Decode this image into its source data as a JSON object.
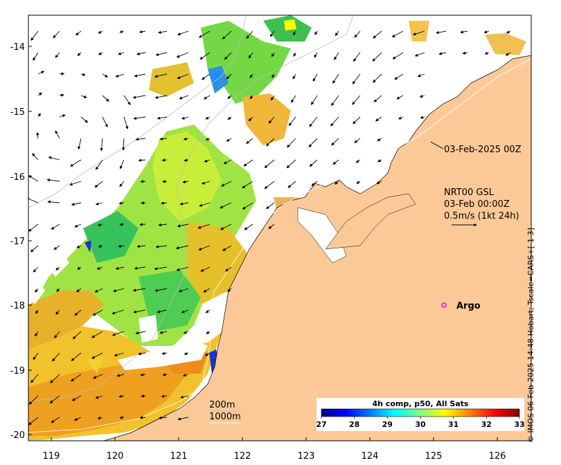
{
  "map": {
    "lon_ticks": [
      "119",
      "120",
      "121",
      "122",
      "123",
      "124",
      "125",
      "126"
    ],
    "lat_ticks": [
      "-14",
      "-15",
      "-16",
      "-17",
      "-18",
      "-19",
      "-20"
    ],
    "timestamp_label": "03-Feb-2025 00Z",
    "product_label": "NRT00 GSL",
    "product_time": "03-Feb 00:00Z",
    "current_scale": "0.5m/s (1kt 24h)",
    "argo_label": "Argo",
    "isobath_200": "200m",
    "isobath_1000": "1000m",
    "credit": "© IMOS 06-Feb-2025 14:48 Hobart; Tscale=CARS+[-1 3]"
  },
  "colorbar": {
    "title": "4h comp, p50, All Sats",
    "ticks": [
      "27",
      "28",
      "29",
      "30",
      "31",
      "32",
      "33"
    ],
    "colormap": [
      "#00007f",
      "#0000ff",
      "#007fff",
      "#00ffff",
      "#7fff7f",
      "#ffff00",
      "#ff7f00",
      "#ff0000",
      "#7f0000"
    ]
  },
  "colors": {
    "land": "#fbc997",
    "argo_marker": "#ff00ff"
  }
}
